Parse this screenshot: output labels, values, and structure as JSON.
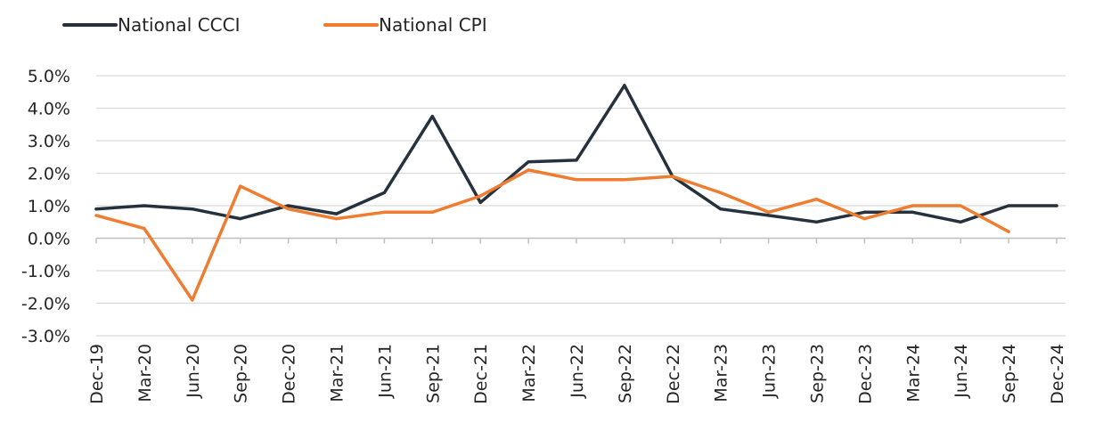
{
  "chart_data": {
    "type": "line",
    "title": "",
    "xlabel": "",
    "ylabel": "",
    "categories": [
      "Dec-19",
      "Mar-20",
      "Jun-20",
      "Sep-20",
      "Dec-20",
      "Mar-21",
      "Jun-21",
      "Sep-21",
      "Dec-21",
      "Mar-22",
      "Jun-22",
      "Sep-22",
      "Dec-22",
      "Mar-23",
      "Jun-23",
      "Sep-23",
      "Dec-23",
      "Mar-24",
      "Jun-24",
      "Sep-24",
      "Dec-24"
    ],
    "ylim": [
      -3.0,
      5.0
    ],
    "yticks": [
      5.0,
      4.0,
      3.0,
      2.0,
      1.0,
      0.0,
      -1.0,
      -2.0,
      -3.0
    ],
    "ytick_labels": [
      "5.0%",
      "4.0%",
      "3.0%",
      "2.0%",
      "1.0%",
      "0.0%",
      "-1.0%",
      "-2.0%",
      "-3.0%"
    ],
    "grid": true,
    "legend_position": "top-left",
    "series": [
      {
        "name": "National CCCI",
        "color": "#25313c",
        "values": [
          0.9,
          1.0,
          0.9,
          0.6,
          1.0,
          0.75,
          1.4,
          3.75,
          1.1,
          2.35,
          2.4,
          4.7,
          1.9,
          0.9,
          0.7,
          0.5,
          0.8,
          0.8,
          0.5,
          1.0,
          1.0
        ]
      },
      {
        "name": "National CPI",
        "color": "#ee7d31",
        "values": [
          0.7,
          0.3,
          -1.9,
          1.6,
          0.9,
          0.6,
          0.8,
          0.8,
          1.3,
          2.1,
          1.8,
          1.8,
          1.9,
          1.4,
          0.8,
          1.2,
          0.6,
          1.0,
          1.0,
          0.2,
          null
        ]
      }
    ]
  }
}
